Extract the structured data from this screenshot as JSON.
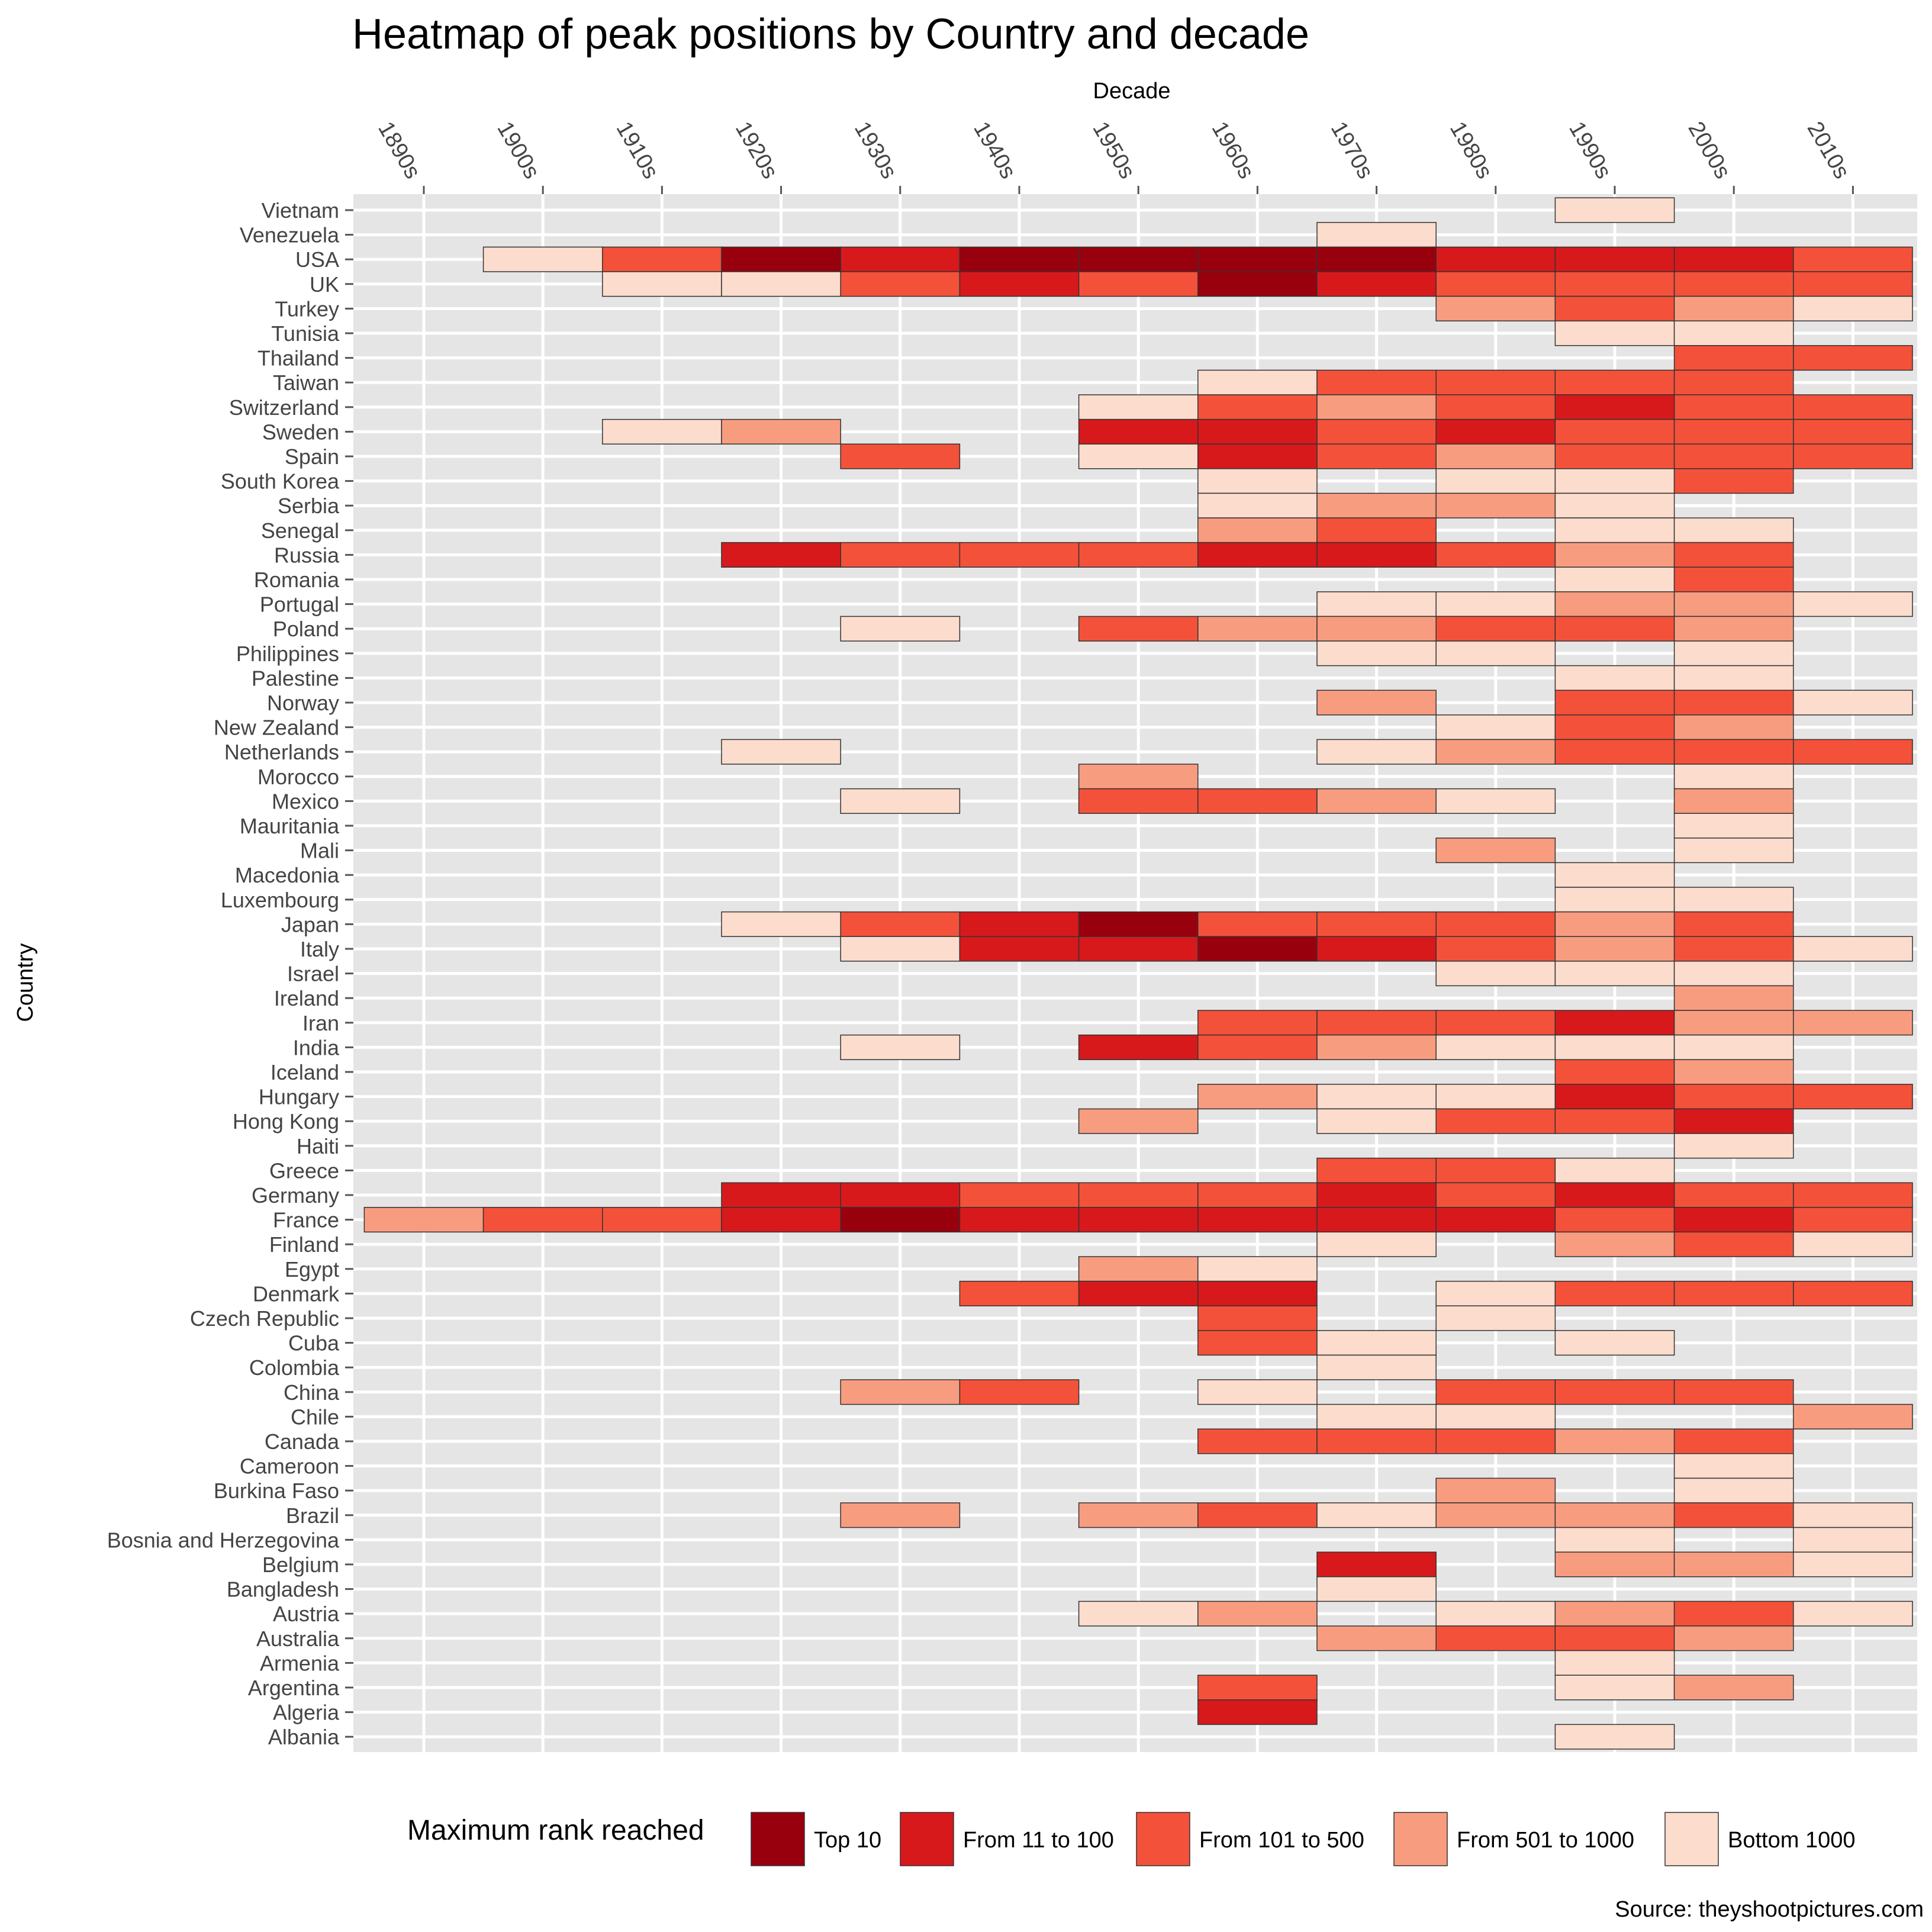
{
  "chart_data": {
    "type": "heatmap",
    "title": "Heatmap of peak positions by Country and decade",
    "xlabel": "Decade",
    "ylabel": "Country",
    "x_categories": [
      "1890s",
      "1900s",
      "1910s",
      "1920s",
      "1930s",
      "1940s",
      "1950s",
      "1960s",
      "1970s",
      "1980s",
      "1990s",
      "2000s",
      "2010s"
    ],
    "y_categories": [
      "Vietnam",
      "Venezuela",
      "USA",
      "UK",
      "Turkey",
      "Tunisia",
      "Thailand",
      "Taiwan",
      "Switzerland",
      "Sweden",
      "Spain",
      "South Korea",
      "Serbia",
      "Senegal",
      "Russia",
      "Romania",
      "Portugal",
      "Poland",
      "Philippines",
      "Palestine",
      "Norway",
      "New Zealand",
      "Netherlands",
      "Morocco",
      "Mexico",
      "Mauritania",
      "Mali",
      "Macedonia",
      "Luxembourg",
      "Japan",
      "Italy",
      "Israel",
      "Ireland",
      "Iran",
      "India",
      "Iceland",
      "Hungary",
      "Hong Kong",
      "Haiti",
      "Greece",
      "Germany",
      "France",
      "Finland",
      "Egypt",
      "Denmark",
      "Czech Republic",
      "Cuba",
      "Colombia",
      "China",
      "Chile",
      "Canada",
      "Cameroon",
      "Burkina Faso",
      "Brazil",
      "Bosnia and Herzegovina",
      "Belgium",
      "Bangladesh",
      "Austria",
      "Australia",
      "Armenia",
      "Argentina",
      "Algeria",
      "Albania"
    ],
    "categories": [
      "Top 10",
      "From 11 to 100",
      "From 101 to 500",
      "From 501 to 1000",
      "Bottom 1000"
    ],
    "legend": {
      "title": "Maximum rank reached",
      "position": "bottom"
    },
    "colors": [
      "#99000d",
      "#d7191c",
      "#f4513a",
      "#f89c80",
      "#fcdccd"
    ],
    "background": "#e5e5e5",
    "grid": true,
    "values": {
      "Vietnam": {
        "1990s": "Bottom 1000"
      },
      "Venezuela": {
        "1970s": "Bottom 1000"
      },
      "USA": {
        "1900s": "Bottom 1000",
        "1910s": "From 101 to 500",
        "1920s": "Top 10",
        "1930s": "From 11 to 100",
        "1940s": "Top 10",
        "1950s": "Top 10",
        "1960s": "Top 10",
        "1970s": "Top 10",
        "1980s": "From 11 to 100",
        "1990s": "From 11 to 100",
        "2000s": "From 11 to 100",
        "2010s": "From 101 to 500"
      },
      "UK": {
        "1910s": "Bottom 1000",
        "1920s": "Bottom 1000",
        "1930s": "From 101 to 500",
        "1940s": "From 11 to 100",
        "1950s": "From 101 to 500",
        "1960s": "Top 10",
        "1970s": "From 11 to 100",
        "1980s": "From 101 to 500",
        "1990s": "From 101 to 500",
        "2000s": "From 101 to 500",
        "2010s": "From 101 to 500"
      },
      "Turkey": {
        "1980s": "From 501 to 1000",
        "1990s": "From 101 to 500",
        "2000s": "From 501 to 1000",
        "2010s": "Bottom 1000"
      },
      "Tunisia": {
        "1990s": "Bottom 1000",
        "2000s": "Bottom 1000"
      },
      "Thailand": {
        "2000s": "From 101 to 500",
        "2010s": "From 101 to 500"
      },
      "Taiwan": {
        "1960s": "Bottom 1000",
        "1970s": "From 101 to 500",
        "1980s": "From 101 to 500",
        "1990s": "From 101 to 500",
        "2000s": "From 101 to 500"
      },
      "Switzerland": {
        "1950s": "Bottom 1000",
        "1960s": "From 101 to 500",
        "1970s": "From 501 to 1000",
        "1980s": "From 101 to 500",
        "1990s": "From 11 to 100",
        "2000s": "From 101 to 500",
        "2010s": "From 101 to 500"
      },
      "Sweden": {
        "1910s": "Bottom 1000",
        "1920s": "From 501 to 1000",
        "1950s": "From 11 to 100",
        "1960s": "From 11 to 100",
        "1970s": "From 101 to 500",
        "1980s": "From 11 to 100",
        "1990s": "From 101 to 500",
        "2000s": "From 101 to 500",
        "2010s": "From 101 to 500"
      },
      "Spain": {
        "1930s": "From 101 to 500",
        "1950s": "Bottom 1000",
        "1960s": "From 11 to 100",
        "1970s": "From 101 to 500",
        "1980s": "From 501 to 1000",
        "1990s": "From 101 to 500",
        "2000s": "From 101 to 500",
        "2010s": "From 101 to 500"
      },
      "South Korea": {
        "1960s": "Bottom 1000",
        "1980s": "Bottom 1000",
        "1990s": "Bottom 1000",
        "2000s": "From 101 to 500"
      },
      "Serbia": {
        "1960s": "Bottom 1000",
        "1970s": "From 501 to 1000",
        "1980s": "From 501 to 1000",
        "1990s": "Bottom 1000"
      },
      "Senegal": {
        "1960s": "From 501 to 1000",
        "1970s": "From 101 to 500",
        "1990s": "Bottom 1000",
        "2000s": "Bottom 1000"
      },
      "Russia": {
        "1920s": "From 11 to 100",
        "1930s": "From 101 to 500",
        "1940s": "From 101 to 500",
        "1950s": "From 101 to 500",
        "1960s": "From 11 to 100",
        "1970s": "From 11 to 100",
        "1980s": "From 101 to 500",
        "1990s": "From 501 to 1000",
        "2000s": "From 101 to 500"
      },
      "Romania": {
        "1990s": "Bottom 1000",
        "2000s": "From 101 to 500"
      },
      "Portugal": {
        "1970s": "Bottom 1000",
        "1980s": "Bottom 1000",
        "1990s": "From 501 to 1000",
        "2000s": "From 501 to 1000",
        "2010s": "Bottom 1000"
      },
      "Poland": {
        "1930s": "Bottom 1000",
        "1950s": "From 101 to 500",
        "1960s": "From 501 to 1000",
        "1970s": "From 501 to 1000",
        "1980s": "From 101 to 500",
        "1990s": "From 101 to 500",
        "2000s": "From 501 to 1000"
      },
      "Philippines": {
        "1970s": "Bottom 1000",
        "1980s": "Bottom 1000",
        "2000s": "Bottom 1000"
      },
      "Palestine": {
        "1990s": "Bottom 1000",
        "2000s": "Bottom 1000"
      },
      "Norway": {
        "1970s": "From 501 to 1000",
        "1990s": "From 101 to 500",
        "2000s": "From 101 to 500",
        "2010s": "Bottom 1000"
      },
      "New Zealand": {
        "1980s": "Bottom 1000",
        "1990s": "From 101 to 500",
        "2000s": "From 501 to 1000"
      },
      "Netherlands": {
        "1920s": "Bottom 1000",
        "1970s": "Bottom 1000",
        "1980s": "From 501 to 1000",
        "1990s": "From 101 to 500",
        "2000s": "From 101 to 500",
        "2010s": "From 101 to 500"
      },
      "Morocco": {
        "1950s": "From 501 to 1000",
        "2000s": "Bottom 1000"
      },
      "Mexico": {
        "1930s": "Bottom 1000",
        "1950s": "From 101 to 500",
        "1960s": "From 101 to 500",
        "1970s": "From 501 to 1000",
        "1980s": "Bottom 1000",
        "2000s": "From 501 to 1000"
      },
      "Mauritania": {
        "2000s": "Bottom 1000"
      },
      "Mali": {
        "1980s": "From 501 to 1000",
        "2000s": "Bottom 1000"
      },
      "Macedonia": {
        "1990s": "Bottom 1000"
      },
      "Luxembourg": {
        "1990s": "Bottom 1000",
        "2000s": "Bottom 1000"
      },
      "Japan": {
        "1920s": "Bottom 1000",
        "1930s": "From 101 to 500",
        "1940s": "From 11 to 100",
        "1950s": "Top 10",
        "1960s": "From 101 to 500",
        "1970s": "From 101 to 500",
        "1980s": "From 101 to 500",
        "1990s": "From 501 to 1000",
        "2000s": "From 101 to 500"
      },
      "Italy": {
        "1930s": "Bottom 1000",
        "1940s": "From 11 to 100",
        "1950s": "From 11 to 100",
        "1960s": "Top 10",
        "1970s": "From 11 to 100",
        "1980s": "From 101 to 500",
        "1990s": "From 501 to 1000",
        "2000s": "From 101 to 500",
        "2010s": "Bottom 1000"
      },
      "Israel": {
        "1980s": "Bottom 1000",
        "1990s": "Bottom 1000",
        "2000s": "Bottom 1000"
      },
      "Ireland": {
        "2000s": "From 501 to 1000"
      },
      "Iran": {
        "1960s": "From 101 to 500",
        "1970s": "From 101 to 500",
        "1980s": "From 101 to 500",
        "1990s": "From 11 to 100",
        "2000s": "From 501 to 1000",
        "2010s": "From 501 to 1000"
      },
      "India": {
        "1930s": "Bottom 1000",
        "1950s": "From 11 to 100",
        "1960s": "From 101 to 500",
        "1970s": "From 501 to 1000",
        "1980s": "Bottom 1000",
        "1990s": "Bottom 1000",
        "2000s": "Bottom 1000"
      },
      "Iceland": {
        "1990s": "From 101 to 500",
        "2000s": "From 501 to 1000"
      },
      "Hungary": {
        "1960s": "From 501 to 1000",
        "1970s": "Bottom 1000",
        "1980s": "Bottom 1000",
        "1990s": "From 11 to 100",
        "2000s": "From 101 to 500",
        "2010s": "From 101 to 500"
      },
      "Hong Kong": {
        "1950s": "From 501 to 1000",
        "1970s": "Bottom 1000",
        "1980s": "From 101 to 500",
        "1990s": "From 101 to 500",
        "2000s": "From 11 to 100"
      },
      "Haiti": {
        "2000s": "Bottom 1000"
      },
      "Greece": {
        "1970s": "From 101 to 500",
        "1980s": "From 101 to 500",
        "1990s": "Bottom 1000"
      },
      "Germany": {
        "1920s": "From 11 to 100",
        "1930s": "From 11 to 100",
        "1940s": "From 101 to 500",
        "1950s": "From 101 to 500",
        "1960s": "From 101 to 500",
        "1970s": "From 11 to 100",
        "1980s": "From 101 to 500",
        "1990s": "From 11 to 100",
        "2000s": "From 101 to 500",
        "2010s": "From 101 to 500"
      },
      "France": {
        "1890s": "From 501 to 1000",
        "1900s": "From 101 to 500",
        "1910s": "From 101 to 500",
        "1920s": "From 11 to 100",
        "1930s": "Top 10",
        "1940s": "From 11 to 100",
        "1950s": "From 11 to 100",
        "1960s": "From 11 to 100",
        "1970s": "From 11 to 100",
        "1980s": "From 11 to 100",
        "1990s": "From 101 to 500",
        "2000s": "From 11 to 100",
        "2010s": "From 101 to 500"
      },
      "Finland": {
        "1970s": "Bottom 1000",
        "1990s": "From 501 to 1000",
        "2000s": "From 101 to 500",
        "2010s": "Bottom 1000"
      },
      "Egypt": {
        "1950s": "From 501 to 1000",
        "1960s": "Bottom 1000"
      },
      "Denmark": {
        "1940s": "From 101 to 500",
        "1950s": "From 11 to 100",
        "1960s": "From 11 to 100",
        "1980s": "Bottom 1000",
        "1990s": "From 101 to 500",
        "2000s": "From 101 to 500",
        "2010s": "From 101 to 500"
      },
      "Czech Republic": {
        "1960s": "From 101 to 500",
        "1980s": "Bottom 1000"
      },
      "Cuba": {
        "1960s": "From 101 to 500",
        "1970s": "Bottom 1000",
        "1990s": "Bottom 1000"
      },
      "Colombia": {
        "1970s": "Bottom 1000"
      },
      "China": {
        "1930s": "From 501 to 1000",
        "1940s": "From 101 to 500",
        "1960s": "Bottom 1000",
        "1980s": "From 101 to 500",
        "1990s": "From 101 to 500",
        "2000s": "From 101 to 500"
      },
      "Chile": {
        "1970s": "Bottom 1000",
        "1980s": "Bottom 1000",
        "2010s": "From 501 to 1000"
      },
      "Canada": {
        "1960s": "From 101 to 500",
        "1970s": "From 101 to 500",
        "1980s": "From 101 to 500",
        "1990s": "From 501 to 1000",
        "2000s": "From 101 to 500"
      },
      "Cameroon": {
        "2000s": "Bottom 1000"
      },
      "Burkina Faso": {
        "1980s": "From 501 to 1000",
        "2000s": "Bottom 1000"
      },
      "Brazil": {
        "1930s": "From 501 to 1000",
        "1950s": "From 501 to 1000",
        "1960s": "From 101 to 500",
        "1970s": "Bottom 1000",
        "1980s": "From 501 to 1000",
        "1990s": "From 501 to 1000",
        "2000s": "From 101 to 500",
        "2010s": "Bottom 1000"
      },
      "Bosnia and Herzegovina": {
        "1990s": "Bottom 1000",
        "2010s": "Bottom 1000"
      },
      "Belgium": {
        "1970s": "From 11 to 100",
        "1990s": "From 501 to 1000",
        "2000s": "From 501 to 1000",
        "2010s": "Bottom 1000"
      },
      "Bangladesh": {
        "1970s": "Bottom 1000"
      },
      "Austria": {
        "1950s": "Bottom 1000",
        "1960s": "From 501 to 1000",
        "1980s": "Bottom 1000",
        "1990s": "From 501 to 1000",
        "2000s": "From 101 to 500",
        "2010s": "Bottom 1000"
      },
      "Australia": {
        "1970s": "From 501 to 1000",
        "1980s": "From 101 to 500",
        "1990s": "From 101 to 500",
        "2000s": "From 501 to 1000"
      },
      "Armenia": {
        "1990s": "Bottom 1000"
      },
      "Argentina": {
        "1960s": "From 101 to 500",
        "1990s": "Bottom 1000",
        "2000s": "From 501 to 1000"
      },
      "Algeria": {
        "1960s": "From 11 to 100"
      },
      "Albania": {
        "1990s": "Bottom 1000"
      }
    },
    "source": "Source: theyshootpictures.com"
  }
}
